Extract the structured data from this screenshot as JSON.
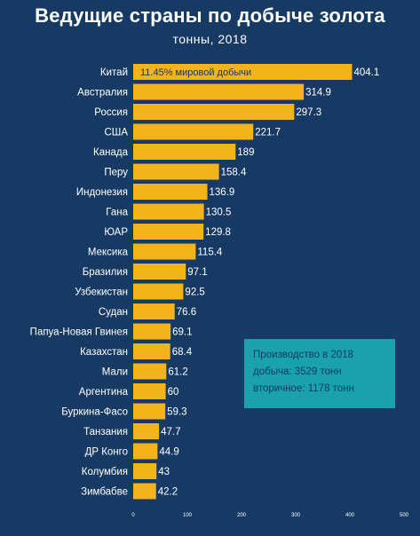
{
  "chart_data": {
    "type": "bar",
    "orientation": "horizontal",
    "title": "Ведущие страны по добыче золота",
    "subtitle": "тонны, 2018",
    "categories": [
      "Китай",
      "Австралия",
      "Россия",
      "США",
      "Канада",
      "Перу",
      "Индонезия",
      "Гана",
      "ЮАР",
      "Мексика",
      "Бразилия",
      "Узбекистан",
      "Судан",
      "Папуа-Новая Гвинея",
      "Казахстан",
      "Мали",
      "Аргентина",
      "Буркина-Фасо",
      "Танзания",
      "ДР Конго",
      "Колумбия",
      "Зимбабве"
    ],
    "values": [
      404.1,
      314.9,
      297.3,
      221.7,
      189,
      158.4,
      136.9,
      130.5,
      129.8,
      115.4,
      97.1,
      92.5,
      76.6,
      69.1,
      68.4,
      61.2,
      60,
      59.3,
      47.7,
      44.9,
      43,
      42.2
    ],
    "value_labels": [
      "404.1",
      "314.9",
      "297.3",
      "221.7",
      "189",
      "158.4",
      "136.9",
      "130.5",
      "129.8",
      "115.4",
      "97.1",
      "92.5",
      "76.6",
      "69.1",
      "68.4",
      "61.2",
      "60",
      "59.3",
      "47.7",
      "44.9",
      "43",
      "42.2"
    ],
    "xticks": [
      0,
      100,
      200,
      300,
      400,
      500
    ],
    "xlim": [
      0,
      500
    ],
    "xlabel": "",
    "ylabel": "",
    "annotation": "11.45% мировой добычи",
    "colors": {
      "background": "#163a63",
      "bar": "#f2b31b",
      "text": "#ffffff",
      "value_text": "#ffffff",
      "annotation_text": "#1b3452",
      "info_box": "#19a1ad"
    }
  },
  "info_box": {
    "title": "Производство в 2018",
    "line1": "добыча: 3529 тонн",
    "line2": "вторичное: 1178 тонн"
  }
}
